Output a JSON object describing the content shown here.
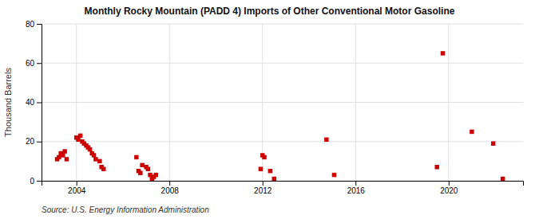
{
  "chart_data": {
    "type": "scatter",
    "title": "Monthly Rocky Mountain (PADD 4) Imports of Other Conventional Motor Gasoline",
    "ylabel": "Thousand Barrels",
    "annotations": [
      "Source: U.S. Energy Information Administration"
    ],
    "x": [
      2003.17,
      2003.25,
      2003.33,
      2003.42,
      2003.5,
      2003.58,
      2004.0,
      2004.08,
      2004.17,
      2004.25,
      2004.33,
      2004.42,
      2004.5,
      2004.58,
      2004.67,
      2004.75,
      2004.83,
      2005.0,
      2005.08,
      2005.17,
      2006.58,
      2006.67,
      2006.75,
      2006.83,
      2007.0,
      2007.08,
      2007.17,
      2007.25,
      2007.33,
      2007.42,
      2011.92,
      2012.0,
      2012.08,
      2012.33,
      2012.5,
      2014.75,
      2015.08,
      2019.5,
      2019.75,
      2021.0,
      2021.92,
      2022.33
    ],
    "values": [
      11,
      12,
      14,
      13,
      15,
      11,
      22,
      21,
      23,
      20,
      19,
      18,
      17,
      16,
      14,
      13,
      11,
      10,
      7,
      6,
      12,
      5,
      4,
      8,
      7,
      6,
      3,
      1,
      2,
      3,
      6,
      13,
      12,
      5,
      1,
      21,
      3,
      7,
      65,
      25,
      19,
      1
    ],
    "color": "#cc0000",
    "marker": "square",
    "xlim": [
      2002.5,
      2023.2
    ],
    "ylim": [
      0,
      80
    ],
    "xticks": [
      2004,
      2008,
      2012,
      2016,
      2020
    ],
    "yticks": [
      0,
      20,
      40,
      60,
      80
    ],
    "grid": true
  }
}
